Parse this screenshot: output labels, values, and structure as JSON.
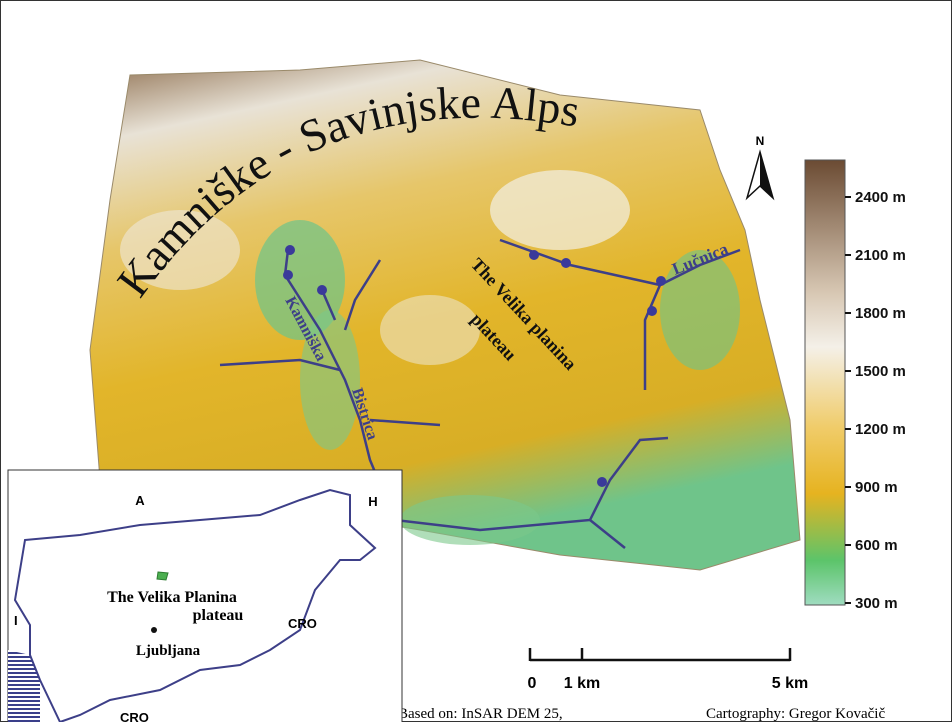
{
  "map": {
    "title": "Kamniške - Savinjske Alps",
    "north": "N",
    "labels": {
      "plateau_line1": "The Velika planina",
      "plateau_line2": "plateau",
      "valley_1": "Kamniška",
      "valley_2": "Bistrica",
      "river": "Lučnica"
    }
  },
  "legend": {
    "labels": [
      "2400 m",
      "2100 m",
      "1800 m",
      "1500 m",
      "1200 m",
      "900 m",
      "600 m",
      "300 m"
    ]
  },
  "scale_bar": {
    "labels": [
      "0",
      "1 km",
      "5 km"
    ]
  },
  "inset": {
    "labels": {
      "north": "A",
      "east": "H",
      "west": "I",
      "southeast": "CRO",
      "south": "CRO",
      "plateau_line1": "The Velika Planina",
      "plateau_line2": "plateau",
      "city": "Ljubljana"
    }
  },
  "credits": {
    "source": "Based on: InSAR DEM 25,",
    "cartography": "Cartography: Gregor Kovačič"
  }
}
